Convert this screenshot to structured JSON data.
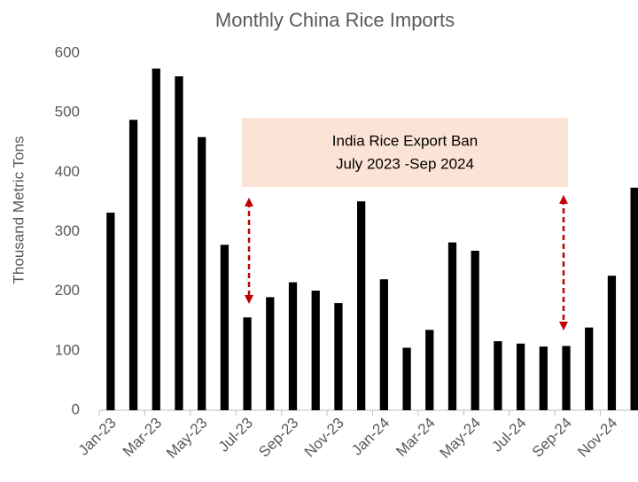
{
  "chart_data": {
    "type": "bar",
    "title": "Monthly China Rice Imports",
    "y_label": "Thousand Metric Tons",
    "annotation": [
      "India Rice Export Ban",
      "July 2023 -Sep 2024"
    ],
    "categories": [
      "Jan-23",
      null,
      "Mar-23",
      null,
      "May-23",
      null,
      "Jul-23",
      null,
      "Sep-23",
      null,
      "Nov-23",
      null,
      "Jan-24",
      null,
      "Mar-24",
      null,
      "May-24",
      null,
      "Jul-24",
      null,
      "Sep-24",
      null,
      "Nov-24",
      null
    ],
    "values": [
      332,
      488,
      574,
      561,
      459,
      278,
      156,
      190,
      215,
      201,
      180,
      351,
      220,
      105,
      135,
      282,
      268,
      116,
      112,
      107,
      108,
      139,
      226,
      374
    ],
    "color": "#000000",
    "ylim": [
      0,
      600
    ],
    "yticks": [
      0,
      100,
      200,
      300,
      400,
      500,
      600
    ],
    "grid": false
  }
}
